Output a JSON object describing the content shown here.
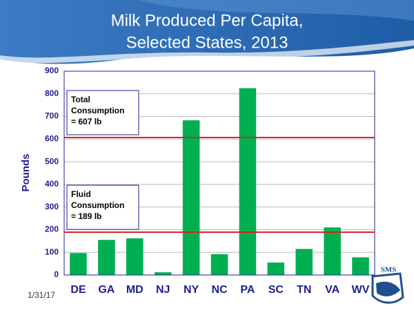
{
  "chart_data": {
    "type": "bar",
    "title_lines": [
      "Milk Produced Per Capita,",
      "Selected States, 2013"
    ],
    "y_label": "Pounds",
    "categories": [
      "DE",
      "GA",
      "MD",
      "NJ",
      "NY",
      "NC",
      "PA",
      "SC",
      "TN",
      "VA",
      "WV"
    ],
    "values": [
      97,
      155,
      162,
      12,
      683,
      92,
      825,
      55,
      115,
      210,
      78
    ],
    "color": "#00b050",
    "ylim": [
      0,
      900
    ],
    "yticks": [
      0,
      100,
      200,
      300,
      400,
      500,
      600,
      700,
      800,
      900
    ],
    "grid": true,
    "reference_lines": [
      {
        "value": 607,
        "color": "#e02020",
        "annotation": [
          "Total",
          "Consumption",
          "= 607 lb"
        ]
      },
      {
        "value": 189,
        "color": "#e02020",
        "annotation": [
          "Fluid",
          "Consumption",
          "= 189 lb"
        ]
      }
    ],
    "date": "1/31/17",
    "logo": "SMS"
  }
}
